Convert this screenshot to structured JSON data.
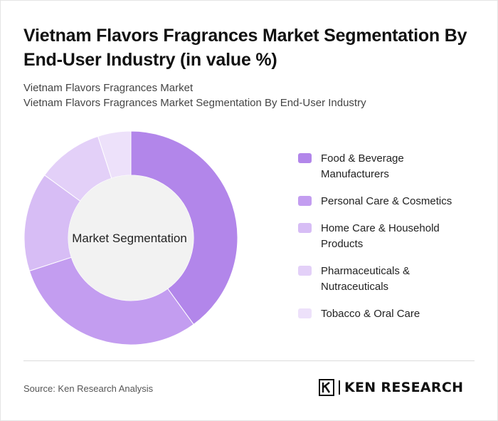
{
  "title": "Vietnam Flavors Fragrances Market Segmentation By End-User Industry (in value %)",
  "subtitle_line1": "Vietnam Flavors Fragrances Market",
  "subtitle_line2": "Vietnam Flavors Fragrances Market Segmentation By End-User Industry",
  "source": "Source: Ken Research Analysis",
  "logo_text": "KEN RESEARCH",
  "chart_data": {
    "type": "pie",
    "variant": "donut",
    "center_label": "Market Segmentation",
    "categories": [
      "Food & Beverage Manufacturers",
      "Personal Care & Cosmetics",
      "Home Care & Household Products",
      "Pharmaceuticals & Nutraceuticals",
      "Tobacco & Oral Care"
    ],
    "values": [
      40,
      30,
      15,
      10,
      5
    ],
    "colors": [
      "#b286ea",
      "#c39df0",
      "#d7bdf5",
      "#e3d0f8",
      "#ede1fa"
    ],
    "legend_position": "right"
  }
}
